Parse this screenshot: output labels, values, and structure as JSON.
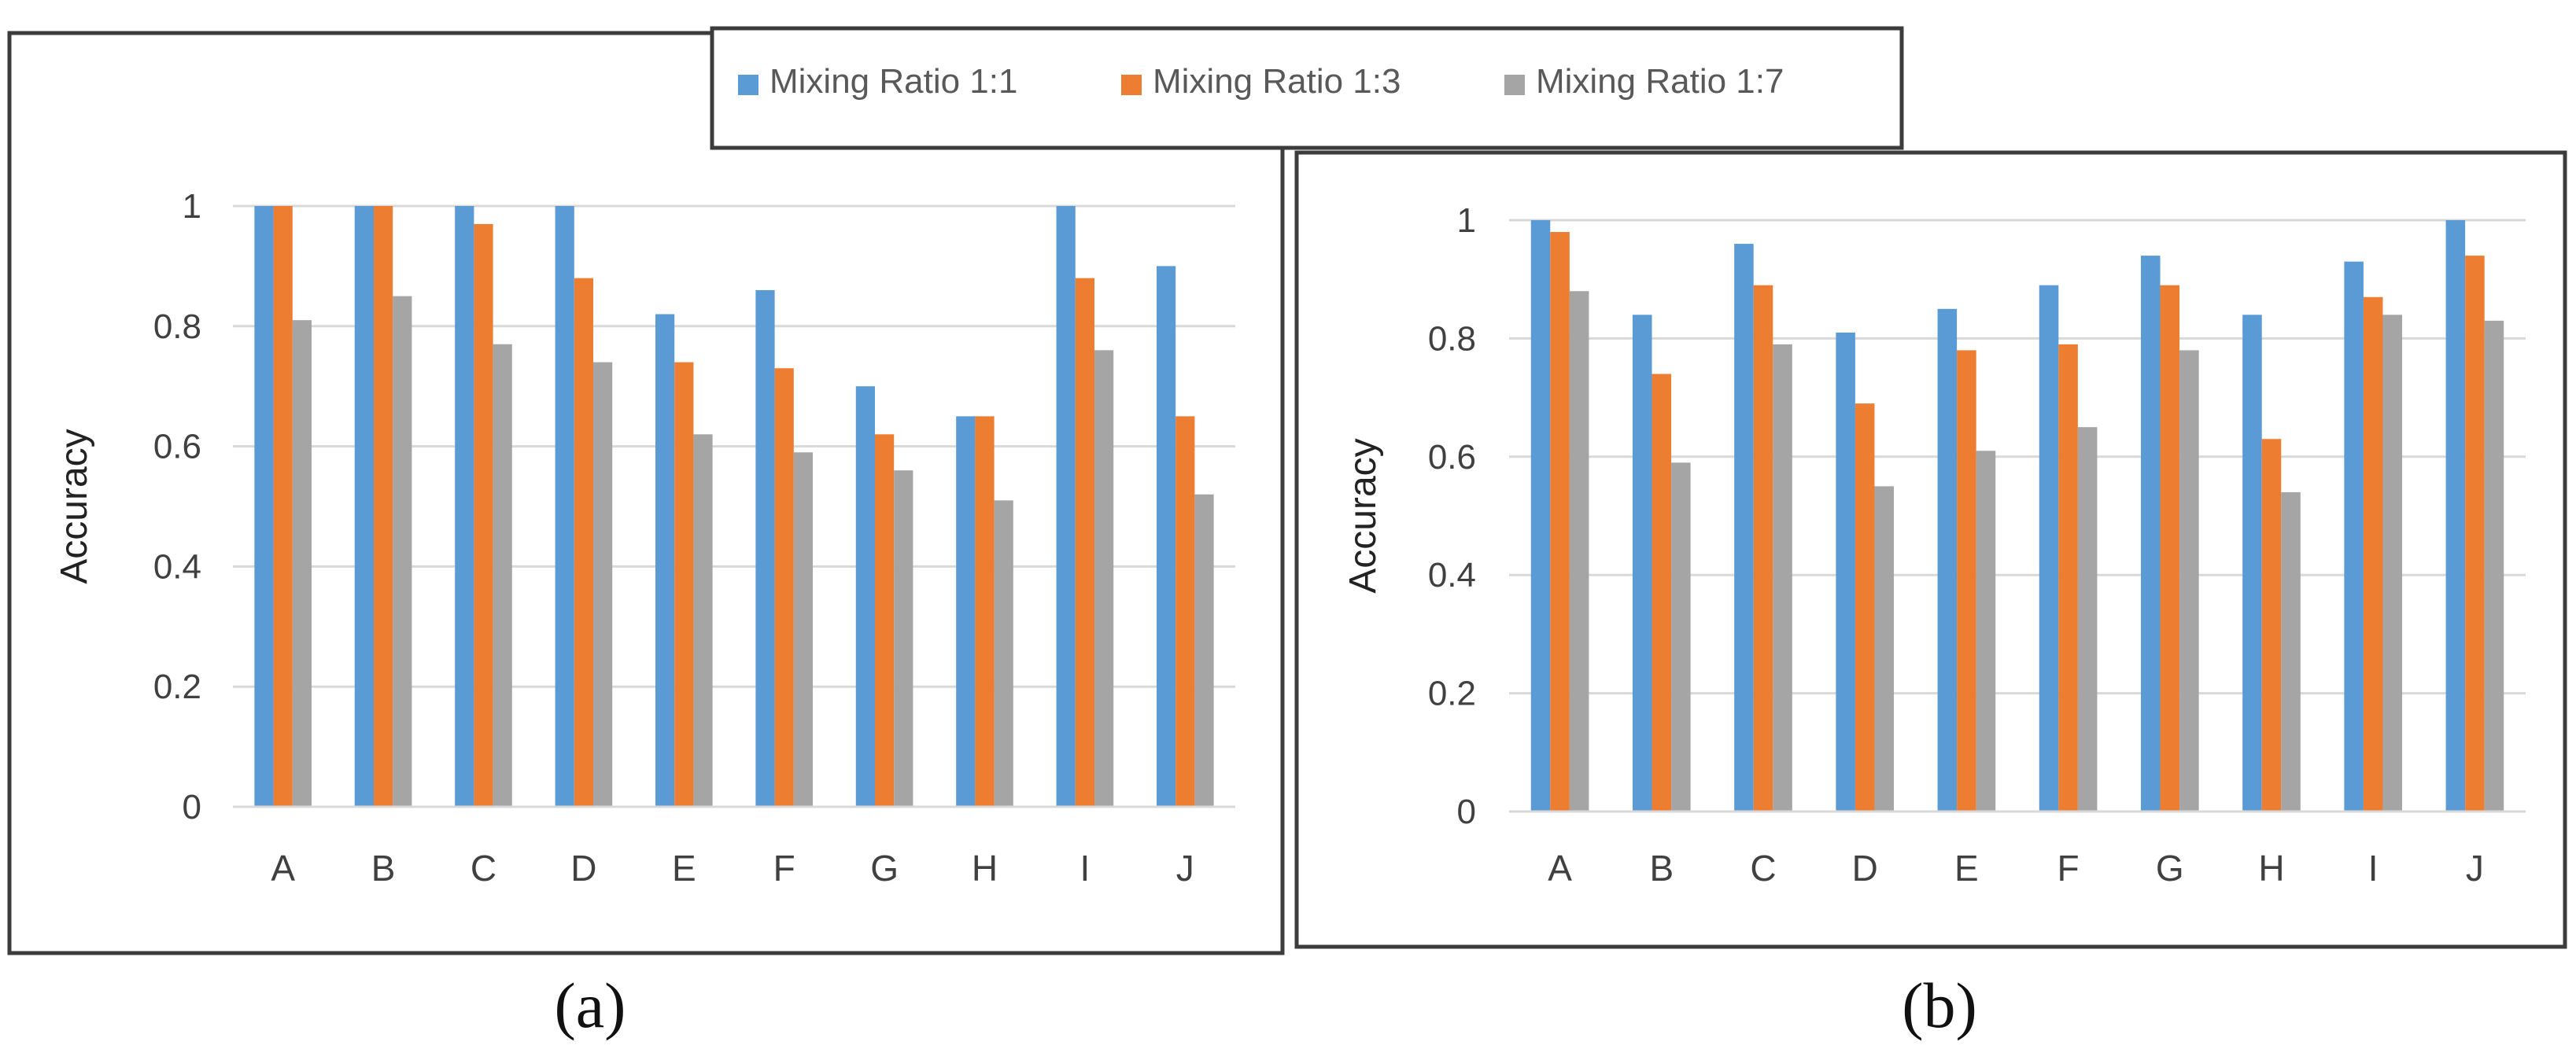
{
  "legend": {
    "entries": [
      {
        "label": "Mixing Ratio 1:1",
        "color": "#5B9BD5"
      },
      {
        "label": "Mixing Ratio 1:3",
        "color": "#ED7D31"
      },
      {
        "label": "Mixing Ratio 1:7",
        "color": "#A5A5A5"
      }
    ]
  },
  "chart_data": [
    {
      "type": "bar",
      "caption": "(a)",
      "title": "",
      "xlabel": "",
      "ylabel": "Accuracy",
      "ylim": [
        0,
        1
      ],
      "yticks": [
        "0",
        "0.2",
        "0.4",
        "0.6",
        "0.8",
        "1"
      ],
      "grid": true,
      "legend_position": "top-right",
      "categories": [
        "A",
        "B",
        "C",
        "D",
        "E",
        "F",
        "G",
        "H",
        "I",
        "J"
      ],
      "series": [
        {
          "name": "Mixing Ratio 1:1",
          "values": [
            1.0,
            1.0,
            1.0,
            1.0,
            0.82,
            0.86,
            0.7,
            0.65,
            1.0,
            0.9
          ]
        },
        {
          "name": "Mixing Ratio 1:3",
          "values": [
            1.0,
            1.0,
            0.97,
            0.88,
            0.74,
            0.73,
            0.62,
            0.65,
            0.88,
            0.65
          ]
        },
        {
          "name": "Mixing Ratio 1:7",
          "values": [
            0.81,
            0.85,
            0.77,
            0.74,
            0.62,
            0.59,
            0.56,
            0.51,
            0.76,
            0.52
          ]
        }
      ]
    },
    {
      "type": "bar",
      "caption": "(b)",
      "title": "",
      "xlabel": "",
      "ylabel": "Accuracy",
      "ylim": [
        0,
        1
      ],
      "yticks": [
        "0",
        "0.2",
        "0.4",
        "0.6",
        "0.8",
        "1"
      ],
      "grid": true,
      "legend_position": "top-left",
      "categories": [
        "A",
        "B",
        "C",
        "D",
        "E",
        "F",
        "G",
        "H",
        "I",
        "J"
      ],
      "series": [
        {
          "name": "Mixing Ratio 1:1",
          "values": [
            1.0,
            0.84,
            0.96,
            0.81,
            0.85,
            0.89,
            0.94,
            0.84,
            0.93,
            1.0
          ]
        },
        {
          "name": "Mixing Ratio 1:3",
          "values": [
            0.98,
            0.74,
            0.89,
            0.69,
            0.78,
            0.79,
            0.89,
            0.63,
            0.87,
            0.94
          ]
        },
        {
          "name": "Mixing Ratio 1:7",
          "values": [
            0.88,
            0.59,
            0.79,
            0.55,
            0.61,
            0.65,
            0.78,
            0.54,
            0.84,
            0.83
          ]
        }
      ]
    }
  ]
}
